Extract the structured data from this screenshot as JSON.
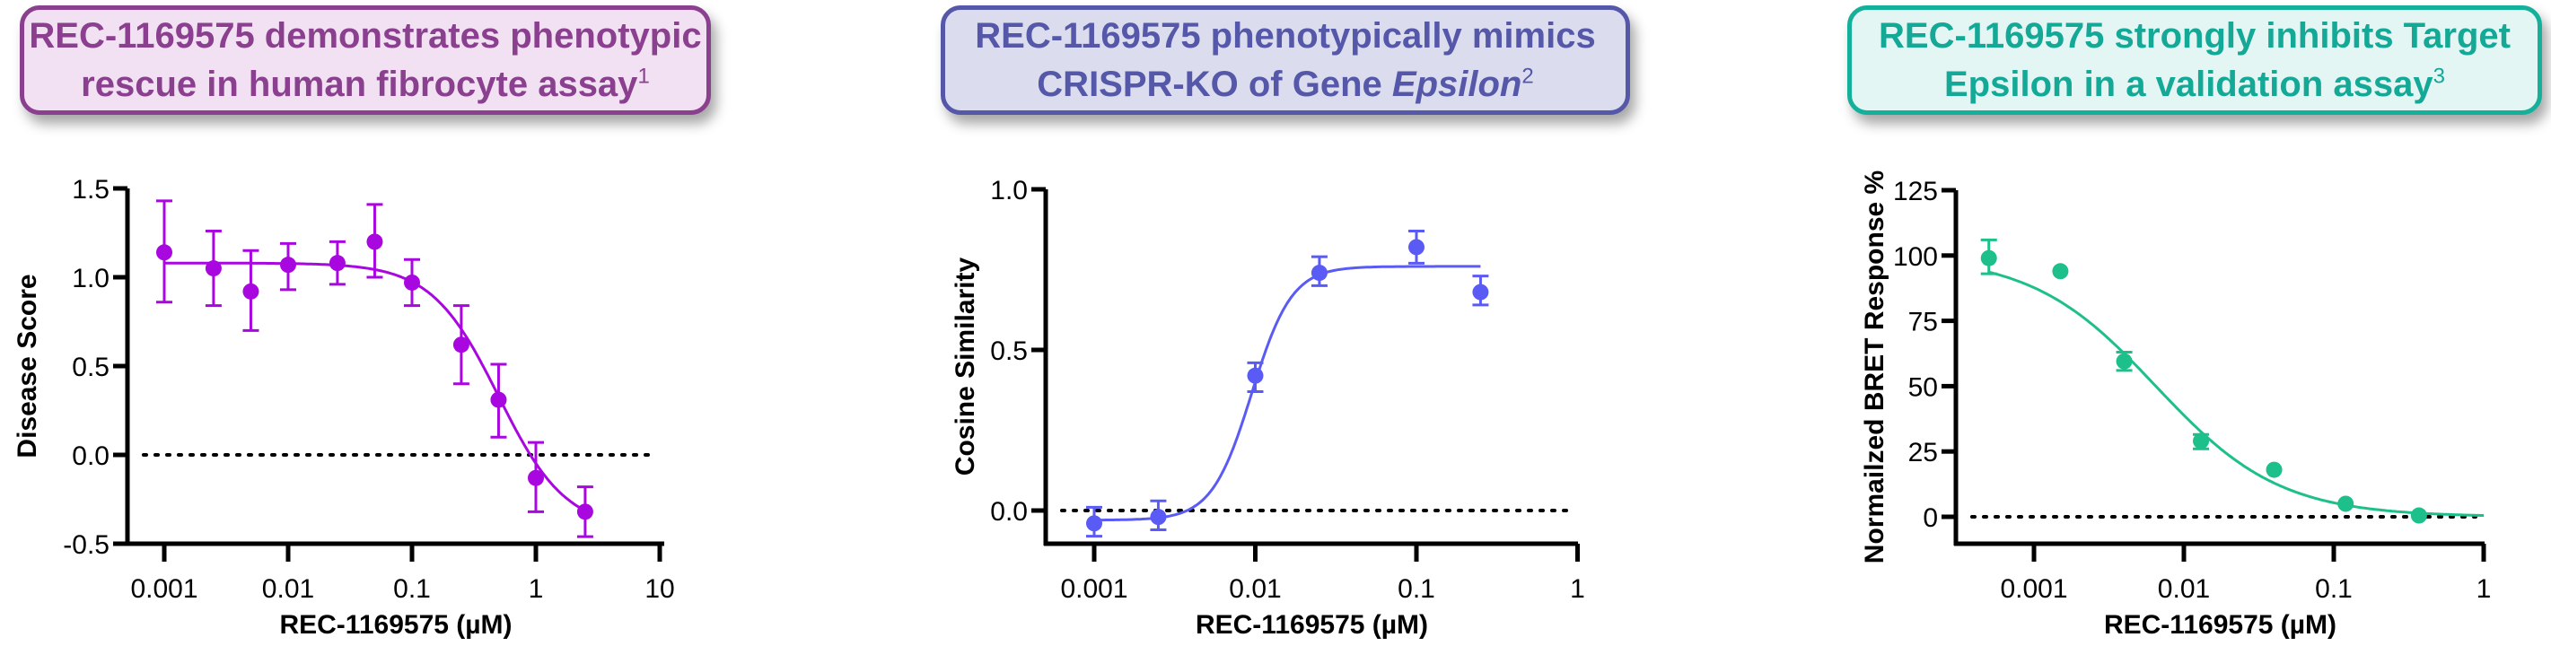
{
  "panels": [
    {
      "title_line1": "REC-1169575 demonstrates phenotypic",
      "title_line2": "rescue in human fibrocyte assay",
      "title_italic": "",
      "title_sup": "1",
      "color": "#a807e0",
      "border": "#8a3f8f",
      "bg": "#f1e1f2",
      "text": "#8a3f8f"
    },
    {
      "title_line1": "REC-1169575 phenotypically mimics",
      "title_line2": "CRISPR-KO of Gene ",
      "title_italic": "Epsilon",
      "title_sup": "2",
      "color": "#5a5af5",
      "border": "#5557a8",
      "bg": "#dcdcef",
      "text": "#5557a8"
    },
    {
      "title_line1": "REC-1169575 strongly inhibits Target",
      "title_line2": "Epsilon in a validation assay",
      "title_italic": "",
      "title_sup": "3",
      "color": "#1dbf8a",
      "border": "#14b09a",
      "bg": "#e3f6f4",
      "text": "#14a896"
    }
  ],
  "chart_data": [
    {
      "type": "scatter",
      "title": "REC-1169575 demonstrates phenotypic rescue in human fibrocyte assay",
      "xlabel": "REC-1169575 (µM)",
      "ylabel": "Disease Score",
      "xscale": "log",
      "xlim": [
        0.0005,
        10
      ],
      "ylim": [
        -0.5,
        1.5
      ],
      "xticks": [
        "0.001",
        "0.01",
        "0.1",
        "1",
        "10"
      ],
      "yticks": [
        "-0.5",
        "0.0",
        "0.5",
        "1.0",
        "1.5"
      ],
      "reference_line": 0,
      "fit": {
        "model": "4PL",
        "top": 1.08,
        "bottom": -0.42,
        "ec50": 0.5,
        "hill": -1.6
      },
      "series": [
        {
          "name": "REC-1169575",
          "x": [
            0.001,
            0.0025,
            0.005,
            0.01,
            0.025,
            0.05,
            0.1,
            0.25,
            0.5,
            1,
            2.5
          ],
          "y": [
            1.14,
            1.05,
            0.92,
            1.07,
            1.08,
            1.2,
            0.97,
            0.62,
            0.31,
            -0.13,
            -0.32
          ],
          "err_low": [
            0.86,
            0.84,
            0.7,
            0.93,
            0.96,
            1.0,
            0.84,
            0.4,
            0.1,
            -0.32,
            -0.46
          ],
          "err_high": [
            1.43,
            1.26,
            1.15,
            1.19,
            1.2,
            1.41,
            1.1,
            0.84,
            0.51,
            0.07,
            -0.18
          ]
        }
      ]
    },
    {
      "type": "scatter",
      "title": "REC-1169575 phenotypically mimics CRISPR-KO of Gene Epsilon",
      "xlabel": "REC-1169575 (µM)",
      "ylabel": "Cosine Similarity",
      "xscale": "log",
      "xlim": [
        0.0005,
        1
      ],
      "ylim": [
        -0.1,
        1.0
      ],
      "xticks": [
        "0.001",
        "0.01",
        "0.1",
        "1"
      ],
      "yticks": [
        "0.0",
        "0.5",
        "1.0"
      ],
      "reference_line": 0,
      "fit": {
        "model": "4PL",
        "top": 0.76,
        "bottom": -0.03,
        "ec50": 0.0095,
        "hill": 3.5
      },
      "series": [
        {
          "name": "REC-1169575",
          "x": [
            0.001,
            0.0025,
            0.01,
            0.025,
            0.1,
            0.25
          ],
          "y": [
            -0.04,
            -0.02,
            0.42,
            0.74,
            0.82,
            0.68
          ],
          "err_low": [
            -0.08,
            -0.06,
            0.37,
            0.7,
            0.77,
            0.64
          ],
          "err_high": [
            0.01,
            0.03,
            0.46,
            0.79,
            0.87,
            0.73
          ]
        }
      ]
    },
    {
      "type": "scatter",
      "title": "REC-1169575 strongly inhibits Target Epsilon in a validation assay",
      "xlabel": "REC-1169575 (µM)",
      "ylabel": "Normailzed BRET Response %",
      "xscale": "log",
      "xlim": [
        0.0002,
        1
      ],
      "ylim": [
        -10,
        125
      ],
      "xticks": [
        "0.001",
        "0.01",
        "0.1",
        "1"
      ],
      "yticks": [
        "0",
        "25",
        "50",
        "75",
        "100",
        "125"
      ],
      "reference_line": 0,
      "fit": {
        "model": "4PL",
        "top": 100,
        "bottom": 0,
        "ec50": 0.0065,
        "hill": -1.05
      },
      "series": [
        {
          "name": "REC-1169575",
          "x": [
            0.0005,
            0.0015,
            0.004,
            0.013,
            0.04,
            0.12,
            0.37
          ],
          "y": [
            99,
            94,
            59.5,
            29,
            18,
            5,
            0.5
          ],
          "err_low": [
            93,
            null,
            56,
            26,
            null,
            null,
            null
          ],
          "err_high": [
            106,
            null,
            63,
            31.5,
            null,
            null,
            null
          ]
        }
      ]
    }
  ]
}
